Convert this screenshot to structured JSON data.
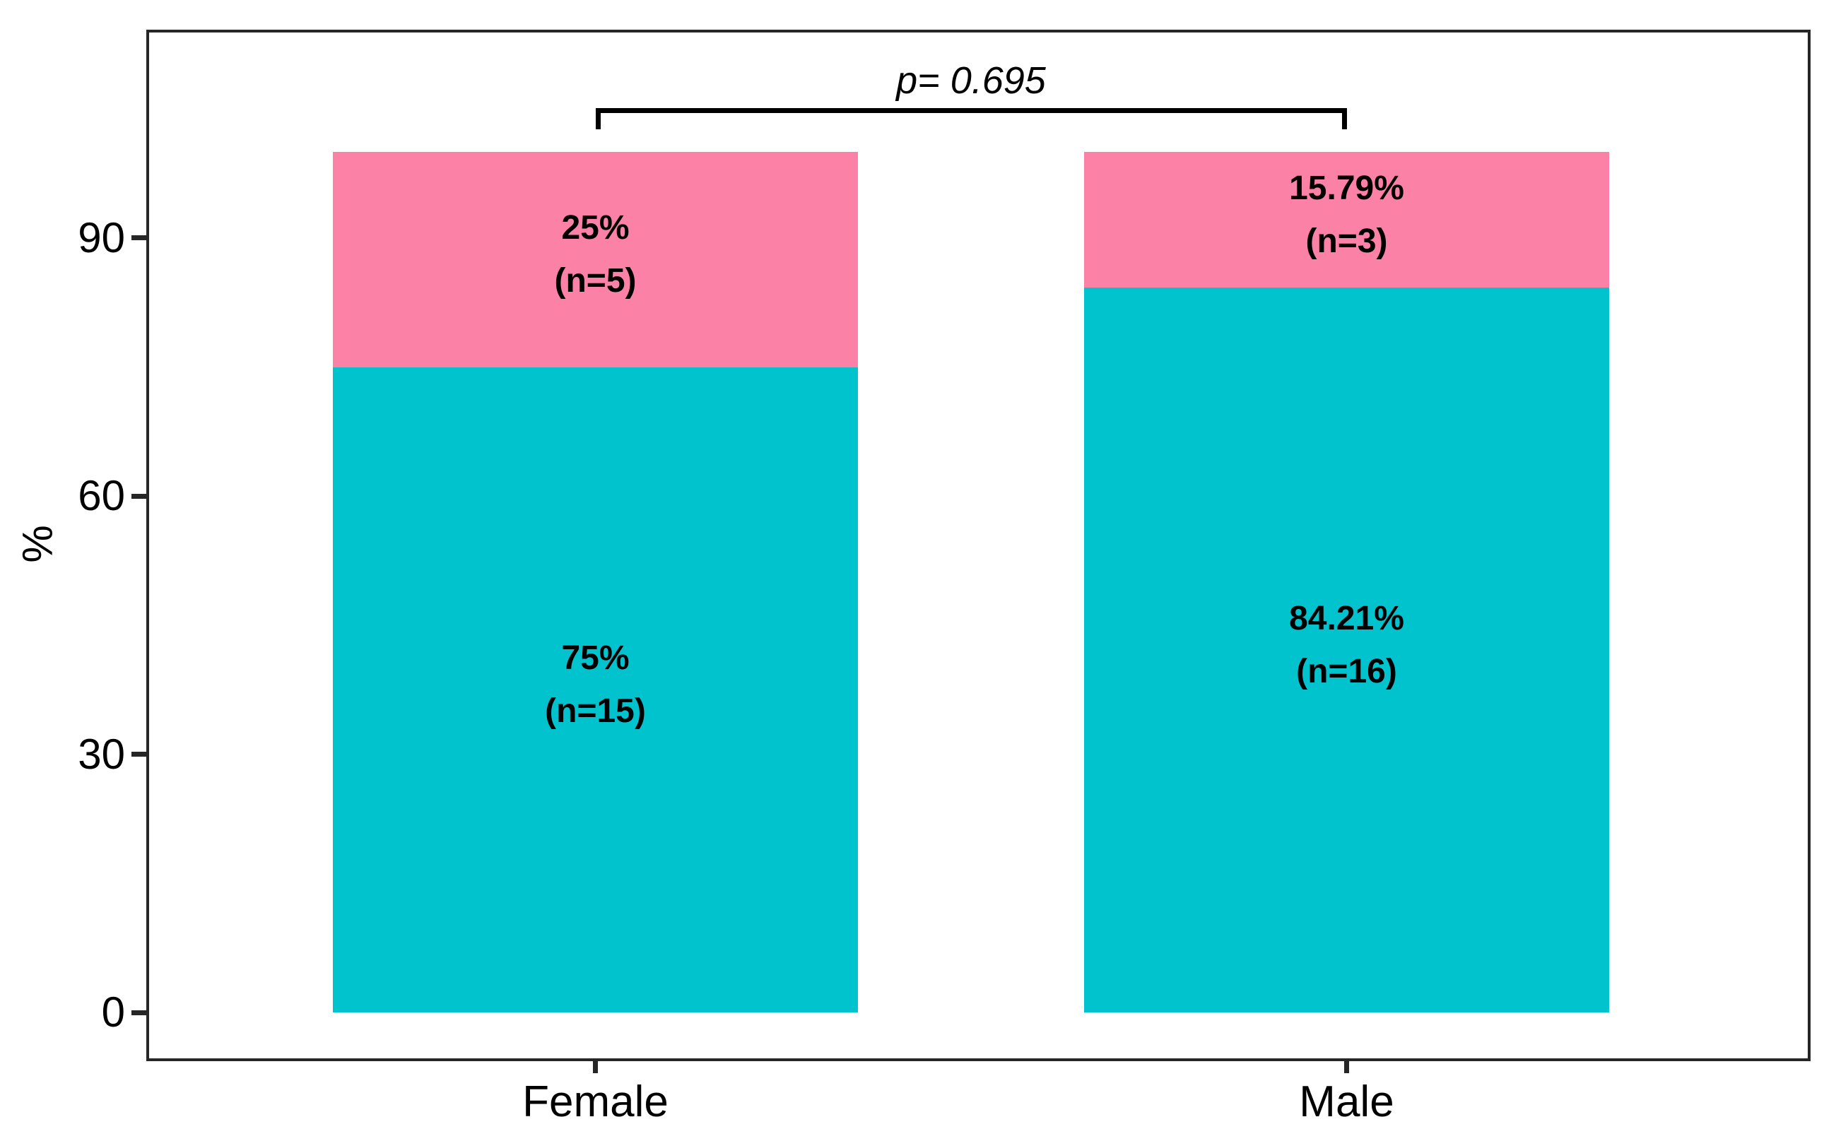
{
  "axes": {
    "y_title": "%"
  },
  "annotation": {
    "p_value": "p= 0.695",
    "bracket_between": [
      "Female",
      "Male"
    ]
  },
  "colors": {
    "teal": "#00C3CD",
    "pink": "#FB82A6",
    "axis": "#262626",
    "text": "#000000"
  },
  "chart_data": {
    "type": "bar",
    "stacked": true,
    "orientation": "vertical",
    "categories": [
      "Female",
      "Male"
    ],
    "series": [
      {
        "name": "lower-segment",
        "color": "#00C3CD",
        "values": [
          75,
          84.21
        ],
        "counts": [
          15,
          16
        ],
        "labels": [
          [
            "75%",
            "(n=15)"
          ],
          [
            "84.21%",
            "(n=16)"
          ]
        ]
      },
      {
        "name": "upper-segment",
        "color": "#FB82A6",
        "values": [
          25,
          15.79
        ],
        "counts": [
          5,
          3
        ],
        "labels": [
          [
            "25%",
            "(n=5)"
          ],
          [
            "15.79%",
            "(n=3)"
          ]
        ]
      }
    ],
    "ylabel": "%",
    "yticks": [
      0,
      30,
      60,
      90
    ],
    "ylim": [
      0,
      114
    ],
    "grid": false,
    "legend": "none",
    "p_value_annotation": "p= 0.695"
  }
}
